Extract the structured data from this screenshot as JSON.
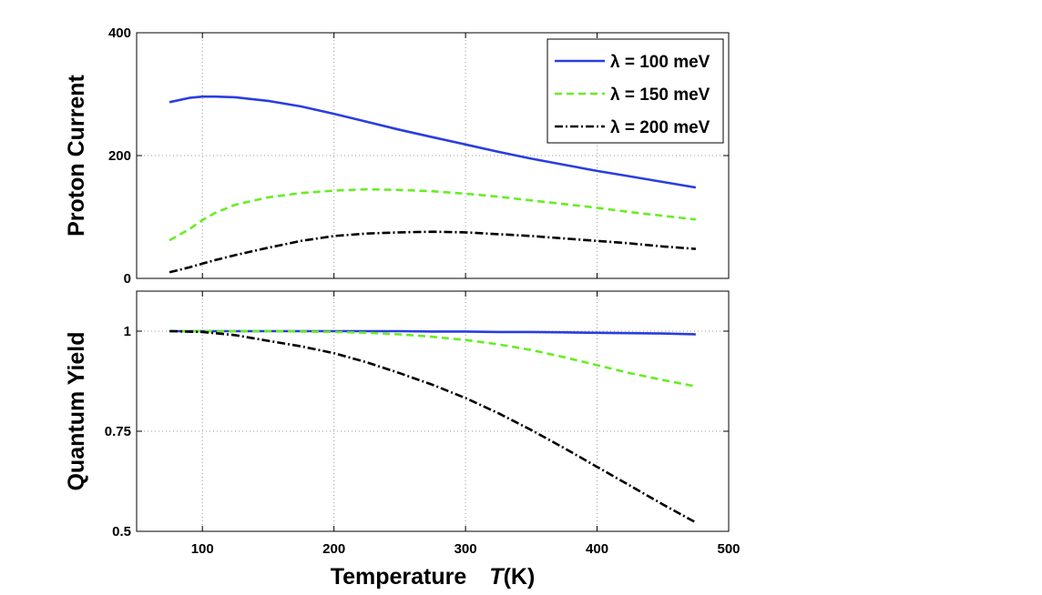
{
  "chart_data": [
    {
      "type": "line",
      "title": "",
      "xlabel": "",
      "ylabel": "Proton Current",
      "xlim": [
        50,
        500
      ],
      "ylim": [
        0,
        400
      ],
      "xticks": [
        100,
        200,
        300,
        400,
        500
      ],
      "yticks": [
        0,
        200,
        400
      ],
      "grid": true,
      "legend_position": "top-right",
      "x": [
        75,
        90,
        100,
        110,
        125,
        150,
        175,
        200,
        225,
        250,
        275,
        300,
        325,
        350,
        375,
        400,
        425,
        450,
        475
      ],
      "series": [
        {
          "name": "λ = 100 meV",
          "color": "#2a3de0",
          "style": "solid",
          "values": [
            287,
            294,
            296,
            296,
            295,
            289,
            280,
            268,
            255,
            242,
            230,
            218,
            206,
            195,
            185,
            175,
            166,
            157,
            148
          ]
        },
        {
          "name": "λ = 150 meV",
          "color": "#66ee22",
          "style": "dashed",
          "values": [
            62,
            80,
            95,
            107,
            120,
            132,
            139,
            143,
            145,
            144,
            142,
            138,
            133,
            127,
            121,
            115,
            108,
            102,
            96
          ]
        },
        {
          "name": "λ = 200 meV",
          "color": "#000000",
          "style": "dashdot",
          "values": [
            10,
            18,
            24,
            30,
            38,
            50,
            61,
            69,
            73,
            75,
            76,
            75,
            72,
            69,
            65,
            61,
            57,
            52,
            48
          ]
        }
      ]
    },
    {
      "type": "line",
      "title": "",
      "xlabel": "Temperature",
      "xlabel_math": "T",
      "xlabel_unit": "(K)",
      "ylabel": "Quantum Yield",
      "xlim": [
        50,
        500
      ],
      "ylim": [
        0.5,
        1.1
      ],
      "xticks": [
        100,
        200,
        300,
        400,
        500
      ],
      "yticks": [
        0.5,
        0.75,
        1
      ],
      "ytick_labels": [
        "0.5",
        "0.75",
        "1"
      ],
      "grid": true,
      "x": [
        75,
        100,
        125,
        150,
        175,
        200,
        225,
        250,
        275,
        300,
        325,
        350,
        375,
        400,
        425,
        450,
        475
      ],
      "series": [
        {
          "name": "λ = 100 meV",
          "color": "#2a3de0",
          "style": "solid",
          "values": [
            1.0,
            1.0,
            1.0,
            1.0,
            1.0,
            1.0,
            1.0,
            1.0,
            0.999,
            0.999,
            0.998,
            0.998,
            0.997,
            0.996,
            0.995,
            0.994,
            0.992
          ]
        },
        {
          "name": "λ = 150 meV",
          "color": "#66ee22",
          "style": "dashed",
          "values": [
            1.0,
            1.0,
            1.0,
            1.0,
            0.999,
            0.998,
            0.996,
            0.992,
            0.986,
            0.978,
            0.967,
            0.953,
            0.935,
            0.915,
            0.895,
            0.878,
            0.862
          ]
        },
        {
          "name": "λ = 200 meV",
          "color": "#000000",
          "style": "dashdot",
          "values": [
            1.0,
            0.998,
            0.99,
            0.976,
            0.962,
            0.945,
            0.922,
            0.895,
            0.866,
            0.833,
            0.795,
            0.753,
            0.708,
            0.661,
            0.614,
            0.567,
            0.522
          ]
        }
      ]
    }
  ]
}
